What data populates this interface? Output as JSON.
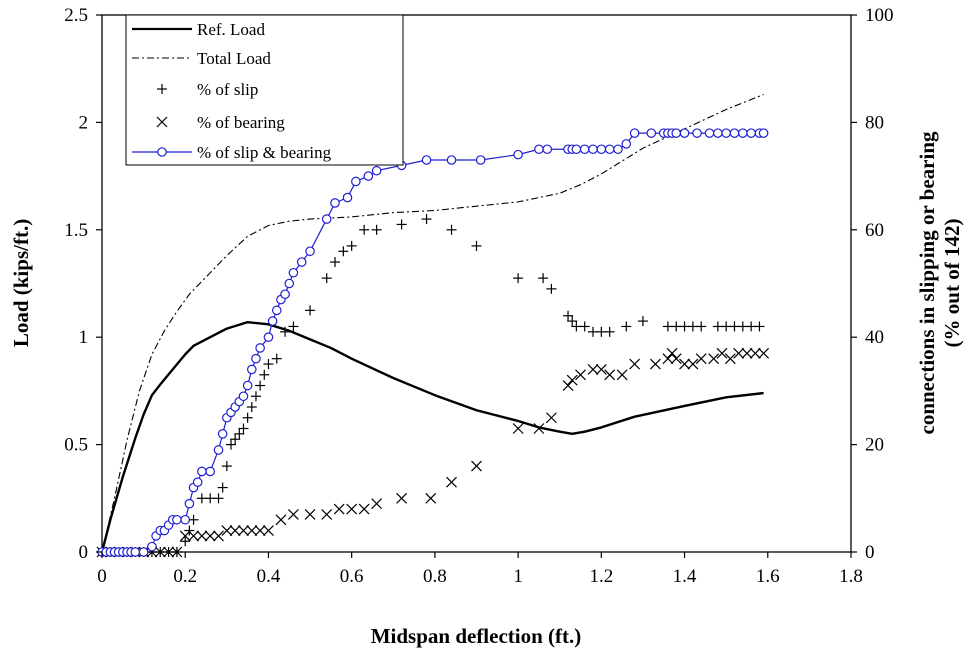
{
  "chart_data": {
    "type": "line",
    "xlabel": "Midspan deflection (ft.)",
    "ylabel": "Load (kips/ft.)",
    "y2label_line1": "connections in slipping or bearing",
    "y2label_line2": "(% out of 142)",
    "xlim": [
      0,
      1.8
    ],
    "ylim": [
      0,
      2.5
    ],
    "y2lim": [
      0,
      100
    ],
    "xticks": [
      "0",
      "0.2",
      "0.4",
      "0.6",
      "0.8",
      "1",
      "1.2",
      "1.4",
      "1.6",
      "1.8"
    ],
    "yticks": [
      "0",
      "0.5",
      "1",
      "1.5",
      "2",
      "2.5"
    ],
    "y2ticks": [
      "0",
      "20",
      "40",
      "60",
      "80",
      "100"
    ],
    "legend_position": "top-left",
    "grid": false,
    "series": [
      {
        "name": "Ref. Load",
        "axis": "left",
        "style": "solid-black",
        "x": [
          0,
          0.02,
          0.05,
          0.08,
          0.1,
          0.12,
          0.14,
          0.17,
          0.2,
          0.22,
          0.25,
          0.3,
          0.35,
          0.4,
          0.45,
          0.5,
          0.55,
          0.6,
          0.7,
          0.8,
          0.9,
          1.0,
          1.05,
          1.1,
          1.13,
          1.16,
          1.2,
          1.28,
          1.4,
          1.5,
          1.59
        ],
        "y": [
          0,
          0.15,
          0.35,
          0.53,
          0.64,
          0.73,
          0.78,
          0.85,
          0.92,
          0.96,
          0.99,
          1.04,
          1.07,
          1.06,
          1.03,
          0.99,
          0.95,
          0.9,
          0.81,
          0.73,
          0.66,
          0.61,
          0.58,
          0.56,
          0.55,
          0.56,
          0.58,
          0.63,
          0.68,
          0.72,
          0.74
        ]
      },
      {
        "name": "Total Load",
        "axis": "left",
        "style": "dash-dot-black",
        "x": [
          0,
          0.03,
          0.06,
          0.09,
          0.12,
          0.15,
          0.18,
          0.21,
          0.25,
          0.3,
          0.35,
          0.4,
          0.45,
          0.5,
          0.6,
          0.7,
          0.8,
          0.9,
          1.0,
          1.1,
          1.15,
          1.2,
          1.25,
          1.3,
          1.4,
          1.5,
          1.59
        ],
        "y": [
          0,
          0.25,
          0.52,
          0.75,
          0.92,
          1.03,
          1.12,
          1.2,
          1.28,
          1.38,
          1.47,
          1.52,
          1.54,
          1.55,
          1.56,
          1.58,
          1.59,
          1.61,
          1.63,
          1.67,
          1.71,
          1.76,
          1.82,
          1.88,
          1.97,
          2.06,
          2.13
        ]
      },
      {
        "name": "% of slip",
        "axis": "right",
        "style": "plus-black",
        "x": [
          0.0,
          0.02,
          0.04,
          0.06,
          0.08,
          0.1,
          0.12,
          0.14,
          0.16,
          0.18,
          0.2,
          0.21,
          0.22,
          0.24,
          0.26,
          0.28,
          0.29,
          0.3,
          0.31,
          0.32,
          0.33,
          0.34,
          0.35,
          0.36,
          0.37,
          0.38,
          0.39,
          0.4,
          0.42,
          0.44,
          0.46,
          0.5,
          0.54,
          0.56,
          0.58,
          0.6,
          0.63,
          0.66,
          0.72,
          0.78,
          0.84,
          0.9,
          1.0,
          1.06,
          1.08,
          1.12,
          1.13,
          1.14,
          1.16,
          1.18,
          1.2,
          1.22,
          1.26,
          1.3,
          1.36,
          1.38,
          1.4,
          1.42,
          1.44,
          1.48,
          1.5,
          1.52,
          1.54,
          1.56,
          1.58
        ],
        "y": [
          0,
          0,
          0,
          0,
          0,
          0,
          0,
          0,
          0,
          0,
          2,
          4,
          6,
          10,
          10,
          10,
          12,
          16,
          20,
          21,
          22,
          23,
          25,
          27,
          29,
          31,
          33,
          35,
          36,
          41,
          42,
          45,
          51,
          54,
          56,
          57,
          60,
          60,
          61,
          62,
          60,
          57,
          51,
          51,
          49,
          44,
          43,
          42,
          42,
          41,
          41,
          41,
          42,
          43,
          42,
          42,
          42,
          42,
          42,
          42,
          42,
          42,
          42,
          42,
          42
        ]
      },
      {
        "name": "% of bearing",
        "axis": "right",
        "style": "cross-black",
        "x": [
          0.0,
          0.02,
          0.04,
          0.06,
          0.08,
          0.1,
          0.12,
          0.14,
          0.16,
          0.18,
          0.2,
          0.22,
          0.24,
          0.26,
          0.28,
          0.3,
          0.32,
          0.34,
          0.36,
          0.38,
          0.4,
          0.43,
          0.46,
          0.5,
          0.54,
          0.57,
          0.6,
          0.63,
          0.66,
          0.72,
          0.79,
          0.84,
          0.9,
          1.0,
          1.05,
          1.08,
          1.12,
          1.13,
          1.15,
          1.18,
          1.2,
          1.22,
          1.25,
          1.28,
          1.33,
          1.36,
          1.37,
          1.38,
          1.4,
          1.42,
          1.44,
          1.47,
          1.49,
          1.51,
          1.53,
          1.55,
          1.57,
          1.59
        ],
        "y": [
          0,
          0,
          0,
          0,
          0,
          0,
          0,
          0,
          0,
          0,
          3,
          3,
          3,
          3,
          3,
          4,
          4,
          4,
          4,
          4,
          4,
          6,
          7,
          7,
          7,
          8,
          8,
          8,
          9,
          10,
          10,
          13,
          16,
          23,
          23,
          25,
          31,
          32,
          33,
          34,
          34,
          33,
          33,
          35,
          35,
          36,
          37,
          36,
          35,
          35,
          36,
          36,
          37,
          36,
          37,
          37,
          37,
          37
        ]
      },
      {
        "name": "% of slip & bearing",
        "axis": "right",
        "style": "circle-line-blue",
        "color": "#1f1fd1",
        "x": [
          0.0,
          0.01,
          0.02,
          0.03,
          0.04,
          0.05,
          0.06,
          0.07,
          0.08,
          0.1,
          0.12,
          0.13,
          0.14,
          0.15,
          0.16,
          0.17,
          0.18,
          0.2,
          0.21,
          0.22,
          0.23,
          0.24,
          0.26,
          0.28,
          0.29,
          0.3,
          0.31,
          0.32,
          0.33,
          0.34,
          0.35,
          0.36,
          0.37,
          0.38,
          0.4,
          0.41,
          0.42,
          0.43,
          0.44,
          0.45,
          0.46,
          0.48,
          0.5,
          0.54,
          0.56,
          0.59,
          0.61,
          0.64,
          0.66,
          0.72,
          0.78,
          0.84,
          0.91,
          1.0,
          1.05,
          1.07,
          1.12,
          1.13,
          1.14,
          1.16,
          1.18,
          1.2,
          1.22,
          1.24,
          1.26,
          1.28,
          1.32,
          1.35,
          1.36,
          1.37,
          1.38,
          1.4,
          1.43,
          1.46,
          1.48,
          1.5,
          1.52,
          1.54,
          1.56,
          1.58,
          1.59
        ],
        "y": [
          0,
          0,
          0,
          0,
          0,
          0,
          0,
          0,
          0,
          0,
          1,
          3,
          4,
          4,
          5,
          6,
          6,
          6,
          9,
          12,
          13,
          15,
          15,
          19,
          22,
          25,
          26,
          27,
          28,
          29,
          31,
          34,
          36,
          38,
          40,
          43,
          45,
          47,
          48,
          50,
          52,
          54,
          56,
          62,
          65,
          66,
          69,
          70,
          71,
          72,
          73,
          73,
          73,
          74,
          75,
          75,
          75,
          75,
          75,
          75,
          75,
          75,
          75,
          75,
          76,
          78,
          78,
          78,
          78,
          78,
          78,
          78,
          78,
          78,
          78,
          78,
          78,
          78,
          78,
          78,
          78
        ]
      }
    ]
  }
}
